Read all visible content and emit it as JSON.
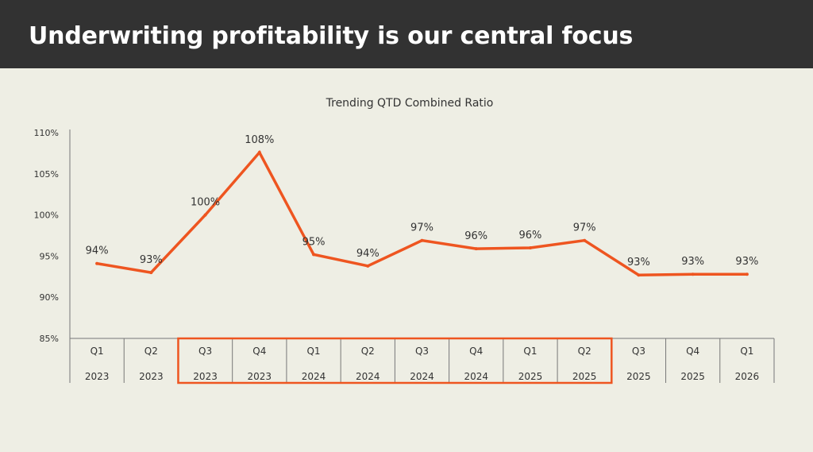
{
  "header": {
    "title": "Underwriting profitability is our central focus"
  },
  "colors": {
    "header_bg": "#323232",
    "background": "#eeeee4",
    "line": "#ee5520",
    "highlight_box": "#ee5520",
    "text": "#333333",
    "axis": "#777777"
  },
  "chart_data": {
    "type": "line",
    "title": "Trending QTD Combined Ratio",
    "xlabel": "",
    "ylabel": "",
    "ylim": [
      85,
      110
    ],
    "yticks": [
      85,
      90,
      95,
      100,
      105,
      110
    ],
    "ytick_labels": [
      "85%",
      "90%",
      "95%",
      "100%",
      "105%",
      "110%"
    ],
    "grid": false,
    "legend": "none",
    "categories": [
      {
        "quarter": "Q1",
        "year": "2023"
      },
      {
        "quarter": "Q2",
        "year": "2023"
      },
      {
        "quarter": "Q3",
        "year": "2023"
      },
      {
        "quarter": "Q4",
        "year": "2023"
      },
      {
        "quarter": "Q1",
        "year": "2024"
      },
      {
        "quarter": "Q2",
        "year": "2024"
      },
      {
        "quarter": "Q3",
        "year": "2024"
      },
      {
        "quarter": "Q4",
        "year": "2024"
      },
      {
        "quarter": "Q1",
        "year": "2025"
      },
      {
        "quarter": "Q2",
        "year": "2025"
      },
      {
        "quarter": "Q3",
        "year": "2025"
      },
      {
        "quarter": "Q4",
        "year": "2025"
      },
      {
        "quarter": "Q1",
        "year": "2026"
      }
    ],
    "series": [
      {
        "values": [
          94.1,
          93.0,
          100.0,
          107.6,
          95.2,
          93.8,
          96.9,
          95.9,
          96.0,
          96.9,
          92.7,
          92.8,
          92.8
        ],
        "data_labels": [
          "94%",
          "93%",
          "100%",
          "108%",
          "95%",
          "94%",
          "97%",
          "96%",
          "96%",
          "97%",
          "93%",
          "93%",
          "93%"
        ]
      }
    ],
    "highlight_range": {
      "start_index": 2,
      "end_index": 9
    }
  }
}
